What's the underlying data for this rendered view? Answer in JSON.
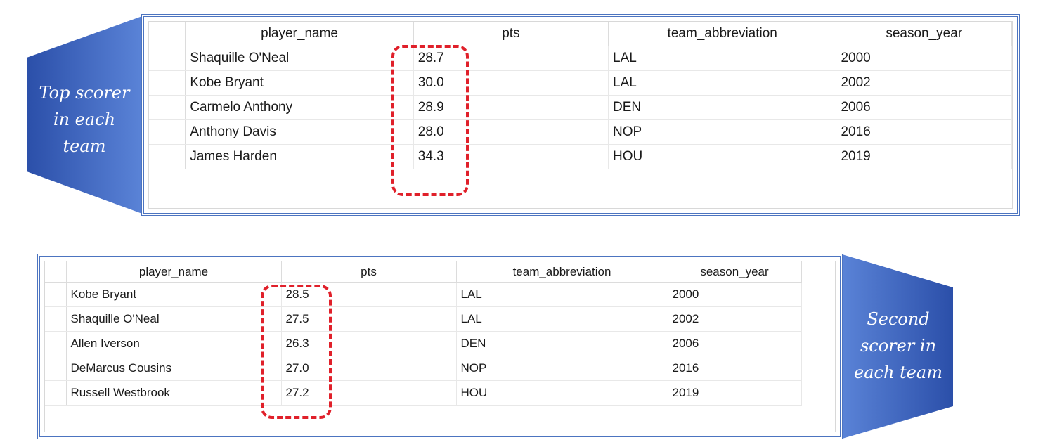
{
  "top_section": {
    "caption_lines": [
      "Top scorer",
      "in each",
      "team"
    ],
    "columns": [
      "player_name",
      "pts",
      "team_abbreviation",
      "season_year"
    ],
    "rows": [
      [
        "Shaquille O'Neal",
        "28.7",
        "LAL",
        "2000"
      ],
      [
        "Kobe Bryant",
        "30.0",
        "LAL",
        "2002"
      ],
      [
        "Carmelo Anthony",
        "28.9",
        "DEN",
        "2006"
      ],
      [
        "Anthony Davis",
        "28.0",
        "NOP",
        "2016"
      ],
      [
        "James Harden",
        "34.3",
        "HOU",
        "2019"
      ]
    ]
  },
  "bottom_section": {
    "caption_lines": [
      "Second",
      "scorer in",
      "each team"
    ],
    "columns": [
      "player_name",
      "pts",
      "team_abbreviation",
      "season_year"
    ],
    "rows": [
      [
        "Kobe Bryant",
        "28.5",
        "LAL",
        "2000"
      ],
      [
        "Shaquille O'Neal",
        "27.5",
        "LAL",
        "2002"
      ],
      [
        "Allen Iverson",
        "26.3",
        "DEN",
        "2006"
      ],
      [
        "DeMarcus Cousins",
        "27.0",
        "NOP",
        "2016"
      ],
      [
        "Russell Westbrook",
        "27.2",
        "HOU",
        "2019"
      ]
    ]
  },
  "colors": {
    "banner_dark": "#2a4fa8",
    "banner_light": "#5a82d6",
    "frame_border": "#4c74c0",
    "highlight_dash": "#e0202a"
  }
}
